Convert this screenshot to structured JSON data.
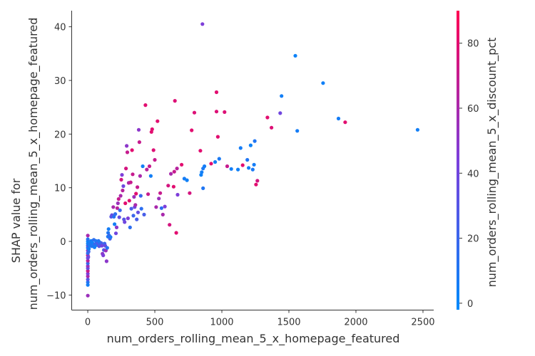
{
  "chart_data": {
    "type": "scatter",
    "xlabel": "num_orders_rolling_mean_5_x_homepage_featured",
    "ylabel": [
      "SHAP value for",
      "num_orders_rolling_mean_5_x_homepage_featured"
    ],
    "colorbar_label": "num_orders_rolling_mean_5_x_discount_pct",
    "xlim": [
      -120,
      2580
    ],
    "ylim": [
      -12.8,
      43
    ],
    "xticks": [
      0,
      500,
      1000,
      1500,
      2000,
      2500
    ],
    "yticks": [
      -10,
      0,
      10,
      20,
      30,
      40
    ],
    "color_range": [
      -2,
      90
    ],
    "color_ticks": [
      0,
      20,
      40,
      60,
      80
    ],
    "colormap": [
      "#008afb",
      "#7b3fdc",
      "#ff0052"
    ],
    "grid": false,
    "points": [
      [
        0,
        -10.1,
        55
      ],
      [
        0,
        -8.1,
        5
      ],
      [
        0,
        -7.6,
        10
      ],
      [
        0,
        -7.1,
        30
      ],
      [
        0,
        -6.5,
        60
      ],
      [
        0,
        -6.0,
        45
      ],
      [
        0,
        -5.5,
        70
      ],
      [
        0,
        -5.0,
        35
      ],
      [
        0,
        -4.6,
        55
      ],
      [
        0,
        -4.1,
        20
      ],
      [
        0,
        -3.6,
        65
      ],
      [
        0,
        -3.1,
        40
      ],
      [
        0,
        -2.6,
        75
      ],
      [
        0,
        -2.2,
        15
      ],
      [
        0,
        -1.7,
        50
      ],
      [
        0,
        -1.2,
        8
      ],
      [
        0,
        -0.8,
        25
      ],
      [
        0,
        -0.4,
        5
      ],
      [
        0,
        0,
        3
      ],
      [
        0,
        0.4,
        12
      ],
      [
        0,
        1.1,
        60
      ],
      [
        4,
        -2.9,
        40
      ],
      [
        6,
        -1.9,
        20
      ],
      [
        8,
        -1.4,
        6
      ],
      [
        10,
        -0.5,
        8
      ],
      [
        15,
        -0.8,
        5
      ],
      [
        20,
        -0.4,
        10
      ],
      [
        25,
        0.1,
        6
      ],
      [
        30,
        -0.9,
        12
      ],
      [
        35,
        -0.3,
        4
      ],
      [
        40,
        -0.6,
        8
      ],
      [
        45,
        0.3,
        15
      ],
      [
        50,
        -1.1,
        5
      ],
      [
        55,
        -0.5,
        20
      ],
      [
        60,
        0.1,
        10
      ],
      [
        65,
        -0.7,
        8
      ],
      [
        70,
        -0.3,
        18
      ],
      [
        75,
        -0.4,
        25
      ],
      [
        80,
        0.1,
        12
      ],
      [
        85,
        -0.9,
        30
      ],
      [
        90,
        -0.2,
        5
      ],
      [
        95,
        -0.4,
        15
      ],
      [
        100,
        -0.3,
        22
      ],
      [
        105,
        -0.8,
        40
      ],
      [
        110,
        -2.3,
        50
      ],
      [
        115,
        -2.6,
        45
      ],
      [
        120,
        -1.6,
        30
      ],
      [
        125,
        -0.4,
        20
      ],
      [
        130,
        -0.8,
        35
      ],
      [
        135,
        -1.7,
        55
      ],
      [
        140,
        -3.7,
        50
      ],
      [
        145,
        -1.2,
        12
      ],
      [
        150,
        0.9,
        8
      ],
      [
        152,
        1.6,
        10
      ],
      [
        155,
        2.3,
        6
      ],
      [
        160,
        1.1,
        18
      ],
      [
        165,
        0.5,
        25
      ],
      [
        170,
        0.8,
        8
      ],
      [
        175,
        4.6,
        30
      ],
      [
        180,
        4.9,
        35
      ],
      [
        190,
        6.4,
        60
      ],
      [
        195,
        4.6,
        12
      ],
      [
        200,
        3.2,
        5
      ],
      [
        205,
        5.1,
        15
      ],
      [
        210,
        1.5,
        40
      ],
      [
        215,
        2.6,
        50
      ],
      [
        220,
        6.2,
        65
      ],
      [
        225,
        7.1,
        55
      ],
      [
        230,
        7.9,
        70
      ],
      [
        235,
        4.5,
        35
      ],
      [
        240,
        5.8,
        20
      ],
      [
        245,
        8.5,
        60
      ],
      [
        250,
        11.5,
        75
      ],
      [
        255,
        12.4,
        45
      ],
      [
        260,
        9.5,
        65
      ],
      [
        265,
        10.3,
        40
      ],
      [
        270,
        4.1,
        30
      ],
      [
        275,
        3.6,
        40
      ],
      [
        280,
        7.1,
        80
      ],
      [
        285,
        13.6,
        75
      ],
      [
        290,
        17.8,
        50
      ],
      [
        295,
        16.6,
        70
      ],
      [
        300,
        4.3,
        45
      ],
      [
        305,
        10.9,
        62
      ],
      [
        310,
        7.6,
        80
      ],
      [
        315,
        2.6,
        15
      ],
      [
        320,
        11.0,
        70
      ],
      [
        325,
        6.1,
        25
      ],
      [
        330,
        17.0,
        80
      ],
      [
        335,
        12.5,
        70
      ],
      [
        340,
        4.8,
        20
      ],
      [
        345,
        8.3,
        55
      ],
      [
        350,
        6.4,
        40
      ],
      [
        355,
        6.8,
        60
      ],
      [
        360,
        8.9,
        80
      ],
      [
        365,
        4.1,
        25
      ],
      [
        370,
        10.1,
        70
      ],
      [
        375,
        5.4,
        35
      ],
      [
        380,
        20.8,
        50
      ],
      [
        385,
        18.5,
        70
      ],
      [
        390,
        12.2,
        60
      ],
      [
        395,
        8.5,
        20
      ],
      [
        400,
        6.1,
        15
      ],
      [
        410,
        14.0,
        5
      ],
      [
        420,
        5.0,
        25
      ],
      [
        430,
        25.4,
        80
      ],
      [
        440,
        13.4,
        65
      ],
      [
        450,
        8.8,
        70
      ],
      [
        460,
        14.0,
        70
      ],
      [
        470,
        12.2,
        5
      ],
      [
        475,
        20.4,
        80
      ],
      [
        480,
        20.9,
        80
      ],
      [
        490,
        17.0,
        78
      ],
      [
        500,
        15.2,
        70
      ],
      [
        510,
        6.4,
        60
      ],
      [
        520,
        22.4,
        80
      ],
      [
        530,
        8.0,
        55
      ],
      [
        540,
        9.0,
        70
      ],
      [
        550,
        6.2,
        15
      ],
      [
        560,
        5.0,
        60
      ],
      [
        575,
        6.5,
        45
      ],
      [
        600,
        10.4,
        75
      ],
      [
        610,
        3.1,
        75
      ],
      [
        620,
        12.6,
        60
      ],
      [
        640,
        10.2,
        80
      ],
      [
        645,
        13.0,
        70
      ],
      [
        650,
        26.2,
        78
      ],
      [
        660,
        1.6,
        80
      ],
      [
        665,
        13.6,
        65
      ],
      [
        670,
        8.7,
        45
      ],
      [
        700,
        14.3,
        80
      ],
      [
        720,
        11.7,
        6
      ],
      [
        740,
        11.4,
        4
      ],
      [
        760,
        9.0,
        75
      ],
      [
        775,
        20.7,
        80
      ],
      [
        795,
        24.0,
        78
      ],
      [
        840,
        16.9,
        80
      ],
      [
        845,
        12.4,
        3
      ],
      [
        850,
        12.9,
        5
      ],
      [
        860,
        13.6,
        8
      ],
      [
        855,
        40.5,
        45
      ],
      [
        860,
        9.9,
        10
      ],
      [
        870,
        14.0,
        6
      ],
      [
        920,
        14.5,
        80
      ],
      [
        950,
        14.8,
        5
      ],
      [
        960,
        27.8,
        80
      ],
      [
        960,
        24.2,
        78
      ],
      [
        970,
        19.5,
        80
      ],
      [
        980,
        15.4,
        8
      ],
      [
        1020,
        24.1,
        78
      ],
      [
        1040,
        14.0,
        70
      ],
      [
        1070,
        13.5,
        5
      ],
      [
        1120,
        13.4,
        4
      ],
      [
        1140,
        17.4,
        6
      ],
      [
        1155,
        14.2,
        80
      ],
      [
        1190,
        15.2,
        10
      ],
      [
        1200,
        13.7,
        5
      ],
      [
        1215,
        17.9,
        3
      ],
      [
        1230,
        13.4,
        8
      ],
      [
        1240,
        14.3,
        6
      ],
      [
        1245,
        18.7,
        10
      ],
      [
        1255,
        10.6,
        80
      ],
      [
        1265,
        11.3,
        75
      ],
      [
        1340,
        23.1,
        80
      ],
      [
        1370,
        21.2,
        78
      ],
      [
        1435,
        23.9,
        40
      ],
      [
        1445,
        27.1,
        5
      ],
      [
        1548,
        34.6,
        3
      ],
      [
        1562,
        20.6,
        6
      ],
      [
        1755,
        29.5,
        4
      ],
      [
        1870,
        22.9,
        6
      ],
      [
        1920,
        22.2,
        80
      ],
      [
        2460,
        20.8,
        5
      ]
    ]
  }
}
